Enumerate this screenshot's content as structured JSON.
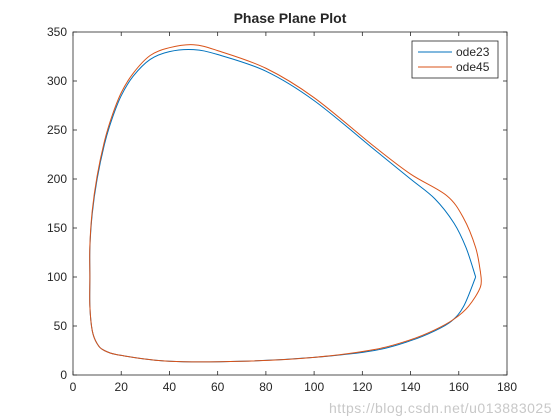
{
  "chart_data": {
    "type": "line",
    "title": "Phase Plane Plot",
    "xlabel": "",
    "ylabel": "",
    "xlim": [
      0,
      180
    ],
    "ylim": [
      0,
      350
    ],
    "xticks": [
      0,
      20,
      40,
      60,
      80,
      100,
      120,
      140,
      160,
      180
    ],
    "yticks": [
      0,
      50,
      100,
      150,
      200,
      250,
      300,
      350
    ],
    "grid": false,
    "legend_position": "top-right",
    "series": [
      {
        "name": "ode23",
        "color": "#0072BD",
        "x": [
          167,
          163,
          158,
          150,
          140,
          125,
          100,
          80,
          60,
          50,
          40,
          32,
          25,
          20,
          16,
          13,
          10,
          8,
          7,
          7,
          7,
          8,
          10,
          13,
          20,
          40,
          70,
          100,
          125,
          140,
          150,
          157,
          162,
          167
        ],
        "y": [
          100,
          130,
          155,
          180,
          200,
          230,
          280,
          310,
          327,
          332,
          330,
          322,
          305,
          285,
          260,
          235,
          200,
          165,
          130,
          100,
          70,
          45,
          32,
          25,
          20,
          14,
          14,
          18,
          25,
          35,
          45,
          55,
          70,
          100
        ]
      },
      {
        "name": "ode45",
        "color": "#D95319",
        "x": [
          169,
          167,
          162,
          155,
          140,
          125,
          100,
          80,
          60,
          50,
          40,
          32,
          25,
          20,
          16,
          13,
          10,
          8,
          7,
          7,
          7,
          8,
          10,
          13,
          20,
          40,
          70,
          100,
          125,
          140,
          150,
          158,
          164,
          169,
          169
        ],
        "y": [
          105,
          130,
          160,
          183,
          205,
          233,
          283,
          313,
          331,
          337,
          334,
          326,
          308,
          288,
          263,
          238,
          203,
          168,
          132,
          100,
          70,
          45,
          32,
          25,
          20,
          14,
          14,
          18,
          26,
          36,
          46,
          57,
          70,
          90,
          105
        ]
      }
    ]
  },
  "watermark": "https://blog.csdn.net/u013883025"
}
